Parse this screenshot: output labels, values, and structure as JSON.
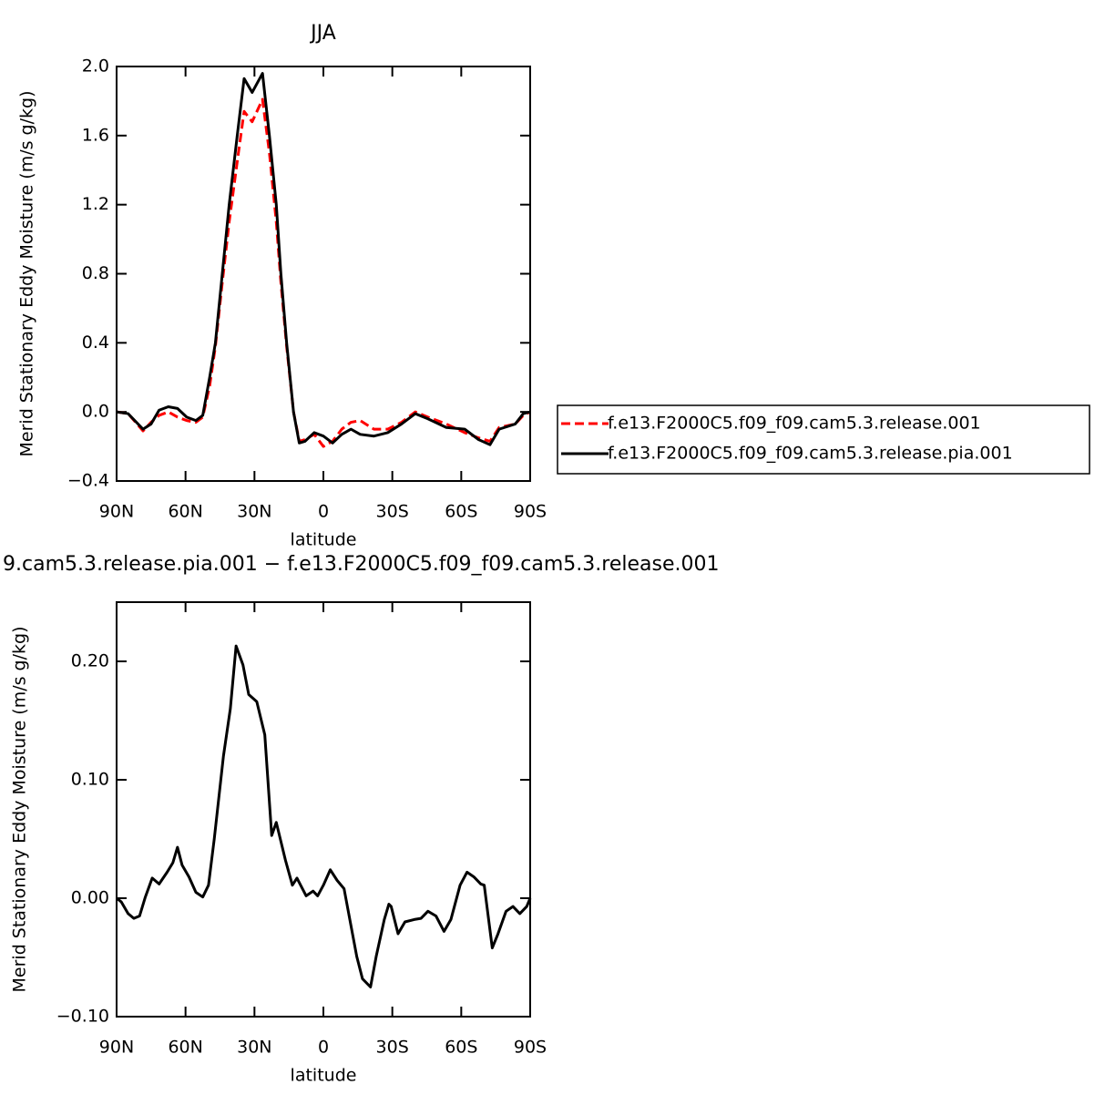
{
  "chart_data": [
    {
      "type": "line",
      "title": "JJA",
      "xlabel": "latitude",
      "ylabel": "Merid Stationary Eddy Moisture (m/s g/kg)",
      "xlim": [
        90,
        -90
      ],
      "xticks": [
        {
          "value": 90,
          "label": "90N"
        },
        {
          "value": 60,
          "label": "60N"
        },
        {
          "value": 30,
          "label": "30N"
        },
        0,
        {
          "value": -30,
          "label": "30S"
        },
        {
          "value": -60,
          "label": "60S"
        },
        {
          "value": -90,
          "label": "90S"
        }
      ],
      "ylim": [
        -0.4,
        2.0
      ],
      "yticks": [
        {
          "value": -0.4,
          "label": "−0.4"
        },
        {
          "value": 0,
          "label": "0.0"
        },
        0.4,
        0.8,
        1.2,
        1.6,
        {
          "value": 2.0,
          "label": "2.0"
        }
      ],
      "legend": "outside-right",
      "x": [
        90,
        85,
        78.5,
        75,
        71.5,
        67.5,
        63.5,
        59.5,
        55.5,
        52.5,
        49.5,
        47,
        44,
        41,
        37.5,
        34.5,
        31,
        26.5,
        23.5,
        20.5,
        18.5,
        16,
        13,
        10.5,
        8,
        4,
        0,
        -4,
        -8,
        -12,
        -16,
        -22,
        -28,
        -34,
        -40,
        -45.5,
        -53.5,
        -61.5,
        -67.5,
        -72.5,
        -76.5,
        -83.5,
        -87,
        -90
      ],
      "series": [
        {
          "name": "f.e13.F2000C5.f09_f09.cam5.3.release.001",
          "color": "#ff0000",
          "dash": true,
          "values": [
            0,
            -0.01,
            -0.11,
            -0.06,
            -0.02,
            0.0,
            -0.03,
            -0.05,
            -0.06,
            -0.03,
            0.15,
            0.38,
            0.75,
            1.1,
            1.45,
            1.74,
            1.68,
            1.81,
            1.5,
            1.1,
            0.75,
            0.38,
            0.0,
            -0.17,
            -0.16,
            -0.13,
            -0.2,
            -0.17,
            -0.1,
            -0.06,
            -0.05,
            -0.1,
            -0.1,
            -0.06,
            0.0,
            -0.03,
            -0.07,
            -0.12,
            -0.15,
            -0.17,
            -0.09,
            -0.07,
            -0.02,
            0
          ]
        },
        {
          "name": "f.e13.F2000C5.f09_f09.cam5.3.release.pia.001",
          "color": "#000000",
          "dash": false,
          "values": [
            0,
            -0.01,
            -0.1,
            -0.07,
            0.01,
            0.03,
            0.02,
            -0.03,
            -0.05,
            -0.02,
            0.2,
            0.4,
            0.8,
            1.2,
            1.6,
            1.93,
            1.85,
            1.96,
            1.6,
            1.2,
            0.8,
            0.4,
            0.0,
            -0.18,
            -0.17,
            -0.12,
            -0.14,
            -0.18,
            -0.13,
            -0.1,
            -0.13,
            -0.14,
            -0.12,
            -0.07,
            -0.01,
            -0.04,
            -0.09,
            -0.1,
            -0.16,
            -0.19,
            -0.1,
            -0.07,
            -0.01,
            0
          ]
        }
      ]
    },
    {
      "type": "line",
      "title": "9.cam5.3.release.pia.001 − f.e13.F2000C5.f09_f09.cam5.3.release.001",
      "xlabel": "latitude",
      "ylabel": "Merid Stationary Eddy Moisture (m/s g/kg)",
      "xlim": [
        90,
        -90
      ],
      "xticks": [
        {
          "value": 90,
          "label": "90N"
        },
        {
          "value": 60,
          "label": "60N"
        },
        {
          "value": 30,
          "label": "30N"
        },
        0,
        {
          "value": -30,
          "label": "30S"
        },
        {
          "value": -60,
          "label": "60S"
        },
        {
          "value": -90,
          "label": "90S"
        }
      ],
      "ylim": [
        -0.1,
        0.25
      ],
      "yticks": [
        {
          "value": -0.1,
          "label": "−0.10"
        },
        {
          "value": 0,
          "label": "0.00"
        },
        {
          "value": 0.1,
          "label": "0.10"
        },
        {
          "value": 0.2,
          "label": "0.20"
        }
      ],
      "x": [
        90,
        88,
        85,
        82.5,
        80,
        77.5,
        74.5,
        71.5,
        68,
        65.5,
        63.5,
        61.5,
        58.5,
        55.5,
        52.5,
        50,
        47.5,
        43.5,
        40.5,
        38,
        35,
        32.5,
        29,
        25.5,
        22.5,
        20.5,
        16.5,
        13.5,
        11.5,
        7.5,
        4.5,
        2.5,
        0,
        -3,
        -6,
        -9,
        -11.5,
        -14.5,
        -17,
        -20.5,
        -23,
        -26.5,
        -28.5,
        -29.5,
        -32.5,
        -35.5,
        -39.5,
        -42.5,
        -45.5,
        -49,
        -52.5,
        -55.5,
        -59.5,
        -62.5,
        -65.5,
        -68.5,
        -70,
        -73.5,
        -76,
        -79.5,
        -82.5,
        -85.5,
        -88.5,
        -90
      ],
      "series": [
        {
          "color": "#000000",
          "dash": false,
          "values": [
            0,
            -0.003,
            -0.013,
            -0.017,
            -0.015,
            0.001,
            0.017,
            0.012,
            0.022,
            0.03,
            0.043,
            0.028,
            0.018,
            0.005,
            0.001,
            0.011,
            0.05,
            0.12,
            0.16,
            0.213,
            0.197,
            0.172,
            0.166,
            0.138,
            0.053,
            0.064,
            0.032,
            0.011,
            0.017,
            0.002,
            0.006,
            0.002,
            0.011,
            0.024,
            0.015,
            0.008,
            -0.018,
            -0.049,
            -0.068,
            -0.075,
            -0.049,
            -0.018,
            -0.005,
            -0.007,
            -0.03,
            -0.02,
            -0.018,
            -0.017,
            -0.011,
            -0.015,
            -0.028,
            -0.018,
            0.011,
            0.022,
            0.018,
            0.012,
            0.011,
            -0.042,
            -0.03,
            -0.011,
            -0.007,
            -0.013,
            -0.007,
            0
          ]
        }
      ]
    }
  ]
}
